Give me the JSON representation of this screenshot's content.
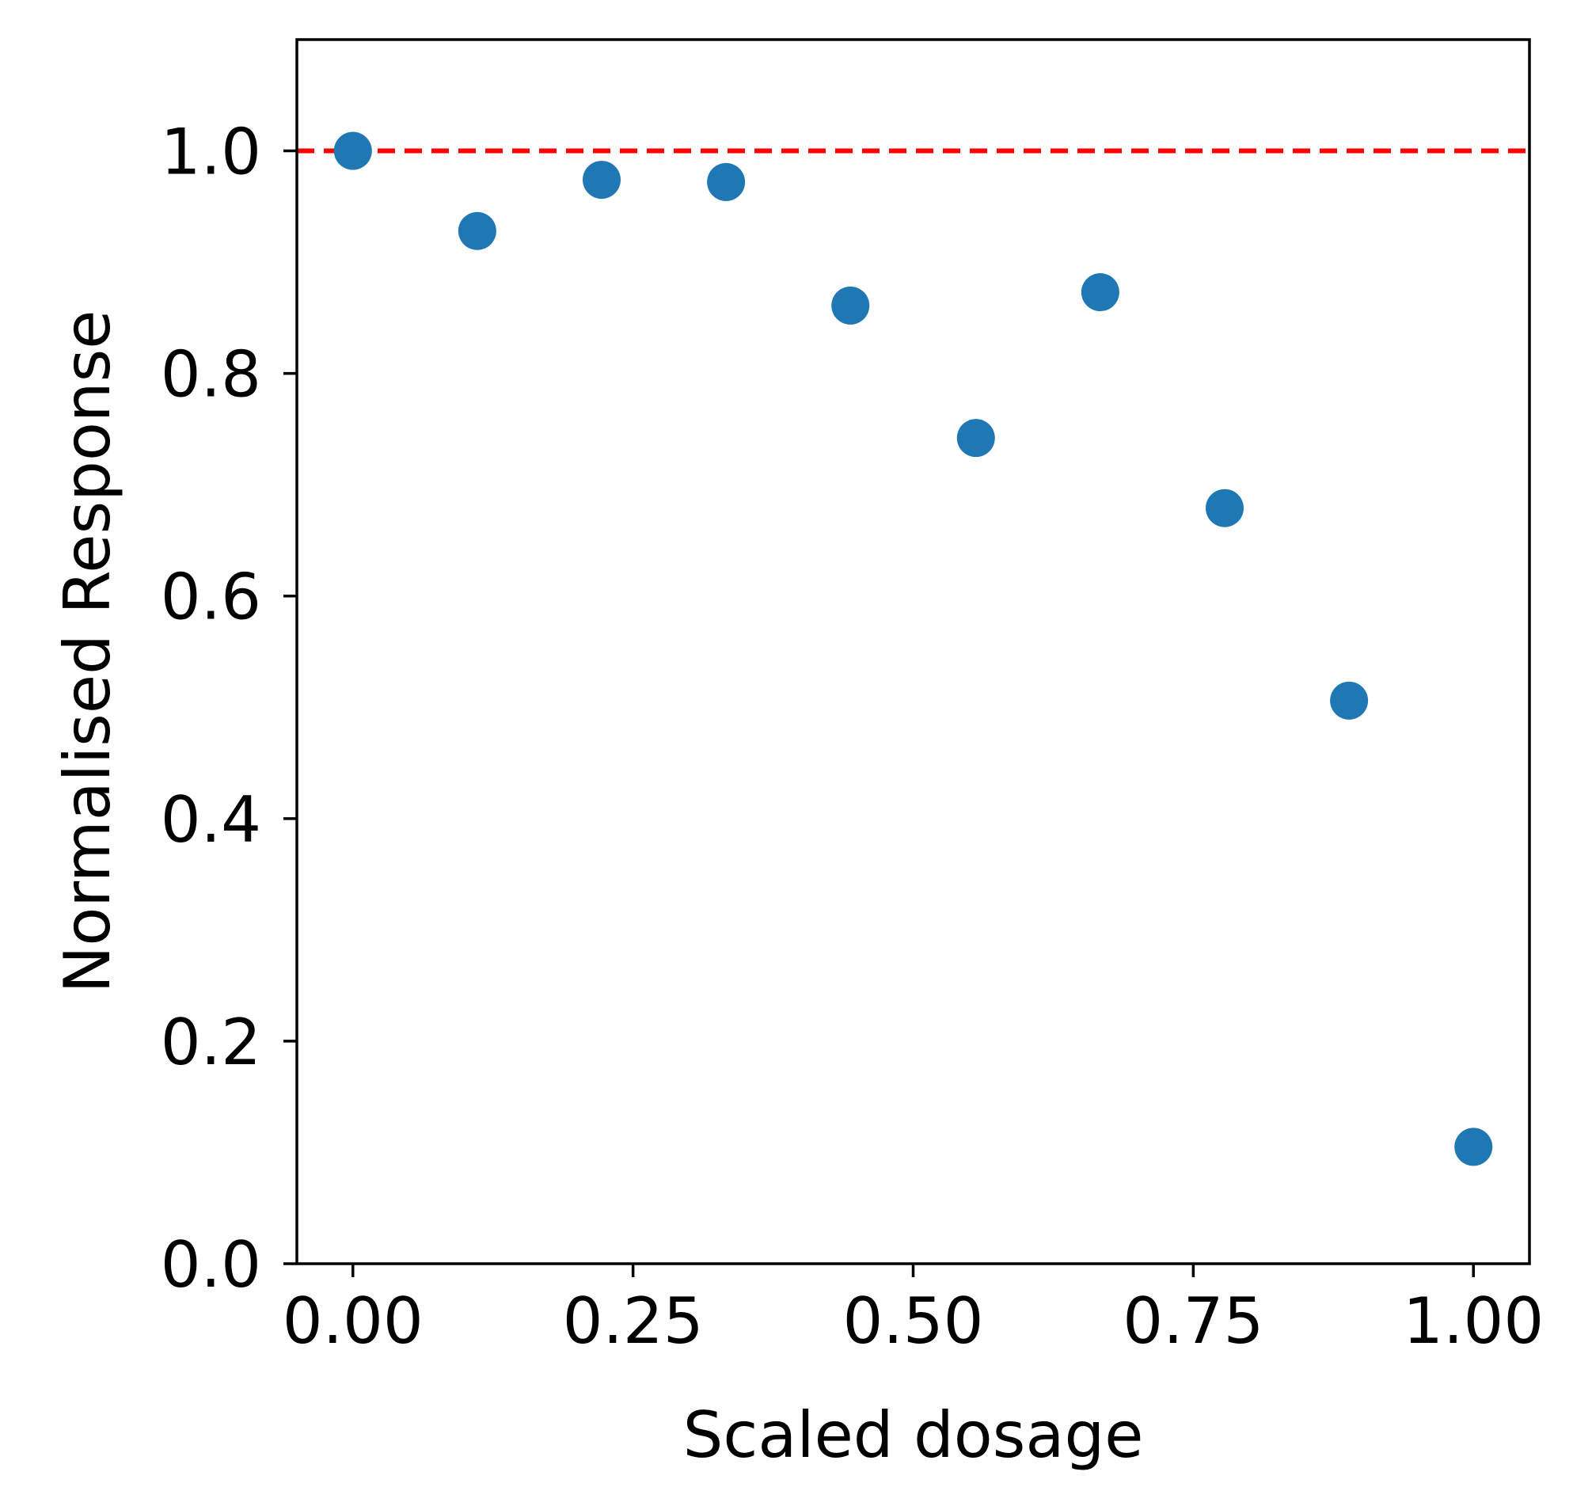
{
  "chart_data": {
    "type": "scatter",
    "title": "",
    "xlabel": "Scaled dosage",
    "ylabel": "Normalised Response",
    "xlim": [
      -0.05,
      1.05
    ],
    "ylim": [
      0.0,
      1.1
    ],
    "grid": false,
    "x_ticks": [
      0.0,
      0.25,
      0.5,
      0.75,
      1.0
    ],
    "x_tick_labels": [
      "0.00",
      "0.25",
      "0.50",
      "0.75",
      "1.00"
    ],
    "y_ticks": [
      0.0,
      0.2,
      0.4,
      0.6,
      0.8,
      1.0
    ],
    "y_tick_labels": [
      "0.0",
      "0.2",
      "0.4",
      "0.6",
      "0.8",
      "1.0"
    ],
    "series": [
      {
        "x": [
          0.0,
          0.111,
          0.222,
          0.333,
          0.444,
          0.556,
          0.667,
          0.778,
          0.889,
          1.0
        ],
        "y": [
          1.0,
          0.928,
          0.974,
          0.972,
          0.861,
          0.742,
          0.873,
          0.679,
          0.506,
          0.105
        ],
        "color": "#1f77b4"
      }
    ],
    "reference_line": {
      "orientation": "horizontal",
      "y": 1.0,
      "color": "#ff0000",
      "style": "dashed"
    }
  }
}
